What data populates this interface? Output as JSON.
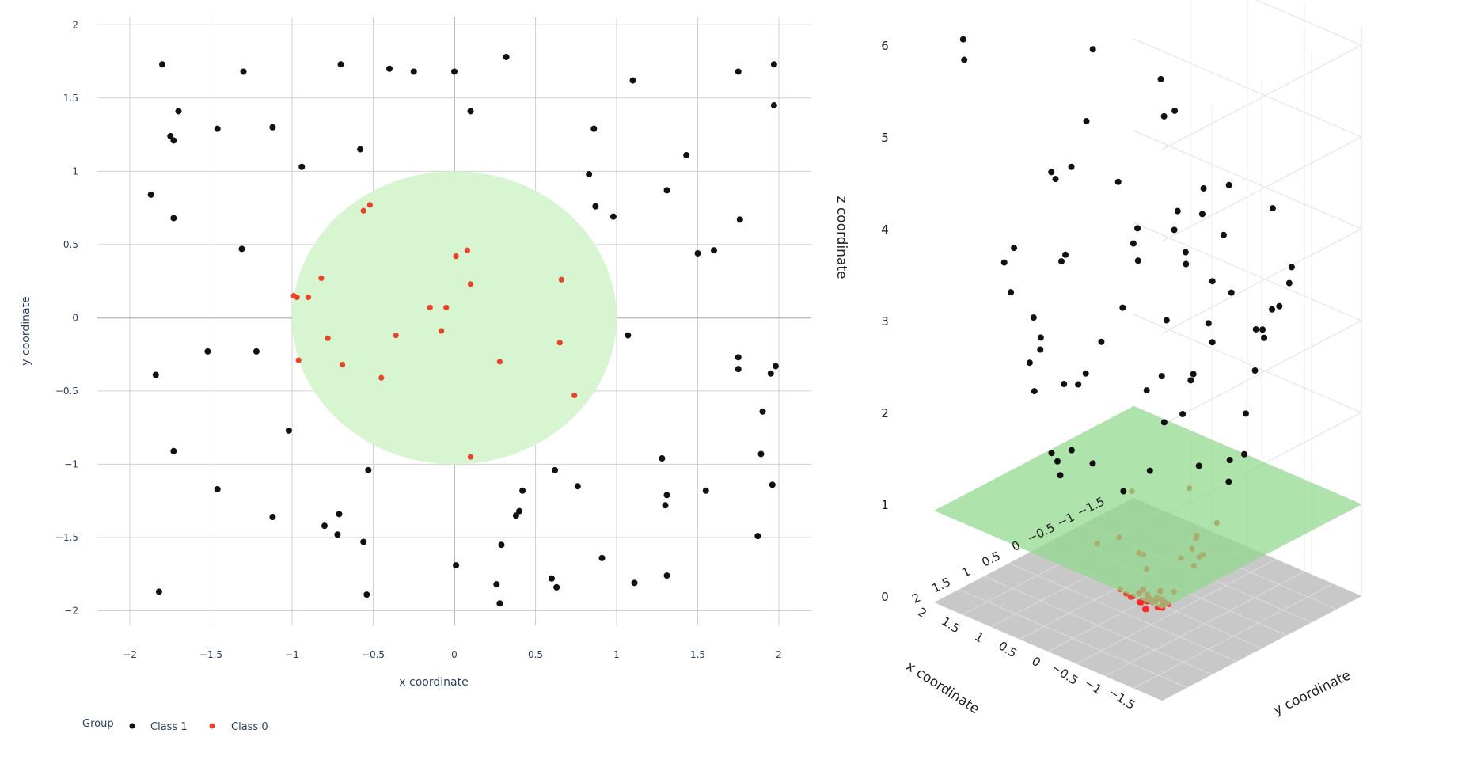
{
  "colors": {
    "class1": "#111111",
    "class0": "#e8442a",
    "class0_projected": "#ff2a2a",
    "circle_fill": "#d6f5d0",
    "plane_fill": "#8fd88a",
    "floor_fill": "#c8c8c8",
    "grid": "#d0d0d0",
    "zero_line": "#bcbcbc"
  },
  "chart_data": [
    {
      "type": "scatter",
      "xlabel": "x coordinate",
      "ylabel": "y coordinate",
      "xlim": [
        -2.2,
        2.2
      ],
      "ylim": [
        -2.1,
        2.05
      ],
      "xticks": [
        -2,
        -1.5,
        -1,
        -0.5,
        0,
        0.5,
        1,
        1.5,
        2
      ],
      "yticks": [
        -2,
        -1.5,
        -1,
        -0.5,
        0,
        0.5,
        1,
        1.5,
        2
      ],
      "xtick_labels": [
        "−2",
        "−1.5",
        "−1",
        "−0.5",
        "0",
        "0.5",
        "1",
        "1.5",
        "2"
      ],
      "ytick_labels": [
        "−2",
        "−1.5",
        "−1",
        "−0.5",
        "0",
        "0.5",
        "1",
        "1.5",
        "2"
      ],
      "grid": true,
      "shape": {
        "kind": "circle",
        "center": [
          0,
          0
        ],
        "radius": 1
      },
      "legend": {
        "title": "Group",
        "placement": "bottom-left",
        "items": [
          {
            "name": "Class 1",
            "color": "#111111"
          },
          {
            "name": "Class 0",
            "color": "#e8442a"
          }
        ]
      },
      "series": [
        {
          "name": "Class 1",
          "x": [
            -1.8,
            -1.3,
            -0.7,
            -0.4,
            -0.25,
            0,
            0.32,
            0.1,
            1.1,
            1.75,
            1.97,
            -1.7,
            -1.75,
            -1.46,
            -1.12,
            -1.73,
            -0.58,
            -0.94,
            -1.87,
            -1.73,
            -1.31,
            0.83,
            0.87,
            0.86,
            1.43,
            1.31,
            1.97,
            1.76,
            1.5,
            1.6,
            0.98,
            1.07,
            1.75,
            1.75,
            1.98,
            1.95,
            1.9,
            1.89,
            -1.84,
            -1.52,
            -1.22,
            -1.02,
            -1.73,
            -1.46,
            -0.53,
            -1.12,
            -0.71,
            -0.8,
            -0.72,
            -0.56,
            -1.82,
            -0.54,
            0.62,
            0.76,
            0.42,
            0.4,
            0.38,
            0.29,
            0.01,
            0.26,
            0.28,
            0.6,
            0.63,
            0.91,
            1.28,
            1.31,
            1.11,
            1.3,
            1.31,
            1.55,
            1.96,
            1.87
          ],
          "y": [
            1.73,
            1.68,
            1.73,
            1.7,
            1.68,
            1.68,
            1.78,
            1.41,
            1.62,
            1.68,
            1.73,
            1.41,
            1.24,
            1.29,
            1.3,
            1.21,
            1.15,
            1.03,
            0.84,
            0.68,
            0.47,
            0.98,
            0.76,
            1.29,
            1.11,
            0.87,
            1.45,
            0.67,
            0.44,
            0.46,
            0.69,
            -0.12,
            -0.27,
            -0.35,
            -0.33,
            -0.38,
            -0.64,
            -0.93,
            -0.39,
            -0.23,
            -0.23,
            -0.77,
            -0.91,
            -1.17,
            -1.04,
            -1.36,
            -1.34,
            -1.42,
            -1.48,
            -1.53,
            -1.87,
            -1.89,
            -1.04,
            -1.15,
            -1.18,
            -1.32,
            -1.35,
            -1.55,
            -1.69,
            -1.82,
            -1.95,
            -1.78,
            -1.84,
            -1.64,
            -0.96,
            -1.21,
            -1.81,
            -1.28,
            -1.76,
            -1.18,
            -1.14,
            -1.49
          ]
        },
        {
          "name": "Class 0",
          "x": [
            -0.56,
            -0.52,
            -0.82,
            -0.99,
            -0.97,
            -0.9,
            -0.78,
            -0.96,
            -0.69,
            -0.45,
            -0.36,
            -0.15,
            -0.05,
            -0.08,
            0.01,
            0.08,
            0.1,
            0.28,
            0.66,
            0.65,
            0.74,
            0.1
          ],
          "y": [
            0.73,
            0.77,
            0.27,
            0.15,
            0.14,
            0.14,
            -0.14,
            -0.29,
            -0.32,
            -0.41,
            -0.12,
            0.07,
            0.07,
            -0.09,
            0.42,
            0.46,
            0.23,
            -0.3,
            0.26,
            -0.17,
            -0.53,
            -0.95
          ]
        }
      ]
    },
    {
      "type": "scatter",
      "xlabel": "x coordinate",
      "ylabel": "y coordinate",
      "zlabel": "z coordinate",
      "xticks_labels": [
        "2",
        "1.5",
        "1",
        "0.5",
        "0",
        "−0.5",
        "−1",
        "−1.5"
      ],
      "yticks_labels": [
        "2",
        "1.5",
        "1",
        "0.5",
        "0",
        "−0.5",
        "−1",
        "−1.5"
      ],
      "zticks": [
        0,
        1,
        2,
        3,
        4,
        5,
        6
      ],
      "zlim": [
        0,
        6.2
      ],
      "plane": {
        "z": 1
      },
      "series": [
        {
          "name": "Class 1",
          "points": "same x, y as 2D Class 1, z = x² + y²"
        },
        {
          "name": "Class 0",
          "points": "same x, y as 2D Class 0, z = x² + y²"
        }
      ]
    }
  ]
}
